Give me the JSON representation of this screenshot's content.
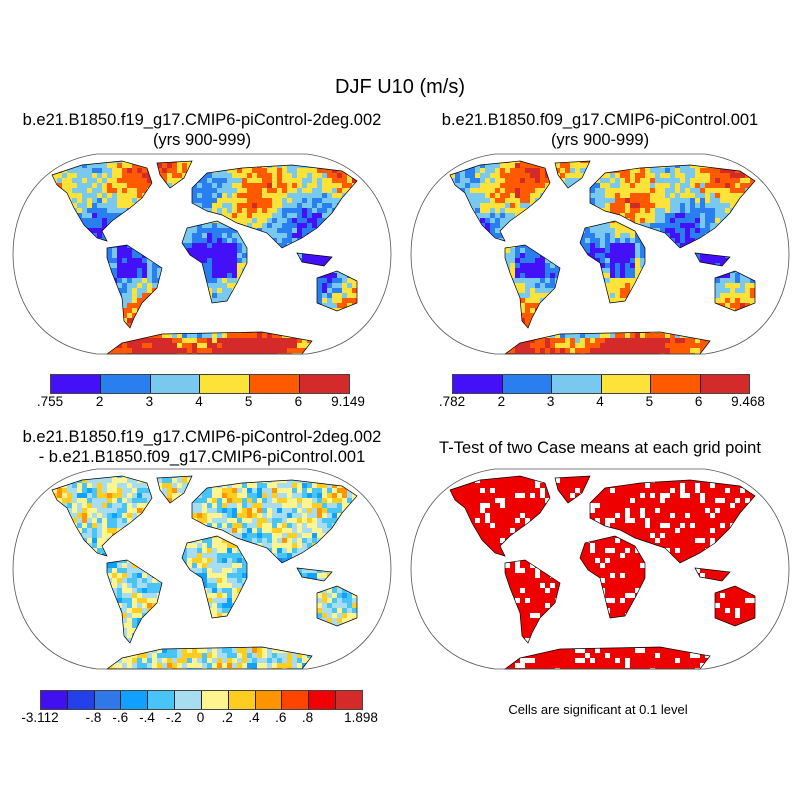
{
  "title": "DJF U10 (m/s)",
  "panels": [
    {
      "title_line1": "b.e21.B1850.f19_g17.CMIP6-piControl-2deg.002",
      "title_line2": "(yrs 900-999)",
      "colorbar": {
        "colors": [
          "#4410f8",
          "#2a7ff0",
          "#78c8f0",
          "#fde23a",
          "#ff5a00",
          "#d42a2a"
        ],
        "labels": [
          ".755",
          "2",
          "3",
          "4",
          "5",
          "6",
          "9.149"
        ]
      }
    },
    {
      "title_line1": "b.e21.B1850.f09_g17.CMIP6-piControl.001",
      "title_line2": "(yrs 900-999)",
      "colorbar": {
        "colors": [
          "#4410f8",
          "#2a7ff0",
          "#78c8f0",
          "#fde23a",
          "#ff5a00",
          "#d42a2a"
        ],
        "labels": [
          ".782",
          "2",
          "3",
          "4",
          "5",
          "6",
          "9.468"
        ]
      }
    },
    {
      "title_line1": "b.e21.B1850.f19_g17.CMIP6-piControl-2deg.002",
      "title_line2": "- b.e21.B1850.f09_g17.CMIP6-piControl.001",
      "colorbar": {
        "colors": [
          "#4010f0",
          "#2440e8",
          "#3078e8",
          "#10a0ff",
          "#48c4f8",
          "#a8dcf0",
          "#fff590",
          "#ffcc20",
          "#ff9400",
          "#ff4400",
          "#f00000",
          "#d42a2a"
        ],
        "labels": [
          "-3.112",
          "",
          "-.8",
          "-.6",
          "-.4",
          "-.2",
          "0",
          ".2",
          ".4",
          ".6",
          ".8",
          "",
          "1.898"
        ]
      }
    },
    {
      "title_line1": "T-Test of two Case means at each grid point",
      "note": "Cells are significant at 0.1 level",
      "significant_color": "#ee0000"
    }
  ]
}
